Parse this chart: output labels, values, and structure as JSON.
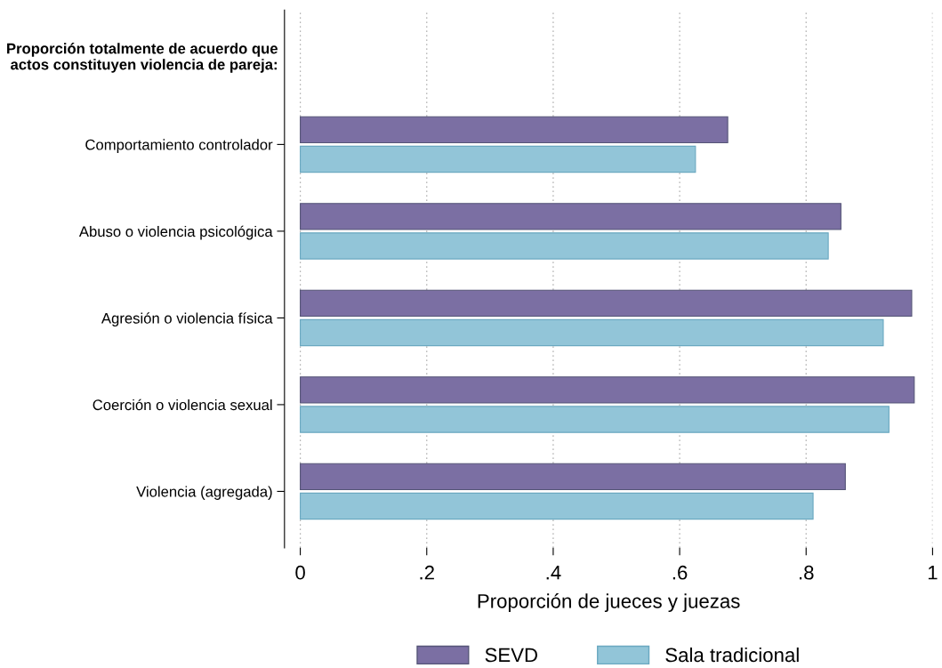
{
  "chart_data": {
    "type": "bar",
    "orientation": "horizontal",
    "categories": [
      "Comportamiento controlador",
      "Abuso o violencia psicológica",
      "Agresión o violencia física",
      "Coerción o violencia sexual",
      "Violencia (agregada)"
    ],
    "series": [
      {
        "name": "SEVD",
        "color": "#7b6fa3",
        "values": [
          0.676,
          0.855,
          0.967,
          0.971,
          0.862
        ]
      },
      {
        "name": "Sala tradicional",
        "color": "#92c5d8",
        "values": [
          0.625,
          0.835,
          0.922,
          0.931,
          0.811
        ]
      }
    ],
    "xlabel": "Proporción de jueces y juezas",
    "annotations": [
      "Proporción totalmente de acuerdo que\nactos constituyen violencia de pareja:"
    ],
    "xlim": [
      -0.025,
      1
    ],
    "xticks": [
      0,
      {
        "value": 0.2,
        "label": ".2"
      },
      {
        "value": 0.4,
        "label": ".4"
      },
      {
        "value": 0.6,
        "label": ".6"
      },
      {
        "value": 0.8,
        "label": ".8"
      },
      1
    ],
    "grid": "x",
    "legend": "bottom"
  }
}
